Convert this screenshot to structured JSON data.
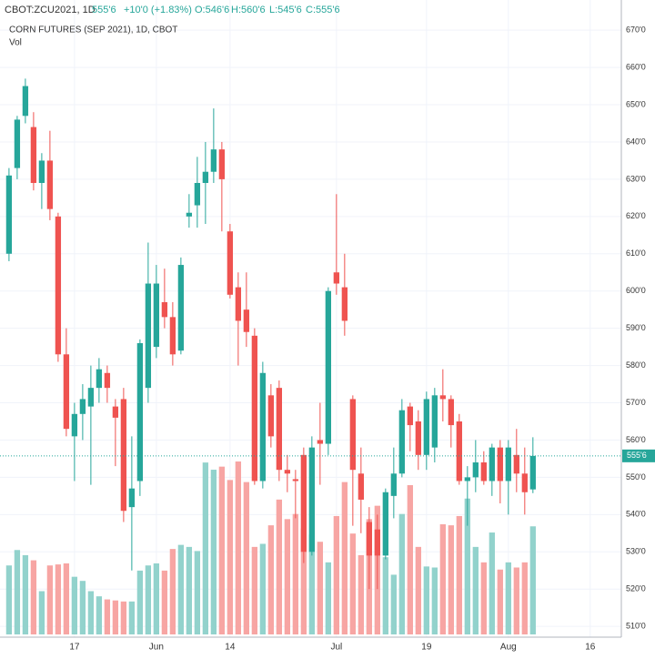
{
  "header": {
    "symbol": "CBOT:ZCU2021, 1D",
    "last": "555'6",
    "change": "+10'0 (+1.83%)",
    "open": "O:546'6",
    "high": "H:560'6",
    "low": "L:545'6",
    "close": "C:555'6"
  },
  "chart_data": {
    "type": "candlestick",
    "title": "CORN FUTURES (SEP 2021), 1D, CBOT",
    "volume_label": "Vol",
    "up_color": "#26a69a",
    "down_color": "#ef5350",
    "up_volume_color": "#92d2cc",
    "down_volume_color": "#f7a5a3",
    "open": [
      610,
      633,
      647,
      644,
      629,
      635,
      620,
      583,
      561,
      567,
      569,
      574,
      578,
      569,
      571,
      542,
      549,
      574,
      585,
      597,
      593,
      584,
      620,
      623,
      629,
      632,
      638,
      616,
      601,
      595,
      588,
      549,
      572,
      574,
      552,
      549.5,
      556,
      530,
      560,
      559,
      605,
      601,
      571,
      551,
      538,
      536,
      529,
      545,
      551,
      569,
      565,
      556,
      558,
      572,
      571,
      565,
      549,
      550,
      554,
      549,
      558,
      549,
      556,
      551,
      546.75
    ],
    "high": [
      633,
      647,
      657,
      648,
      637,
      643,
      621,
      590,
      570,
      575,
      580,
      582,
      580,
      571,
      574,
      561,
      587,
      613,
      607,
      606,
      597,
      609,
      626,
      636,
      640,
      649,
      640,
      618,
      605,
      605,
      590,
      581,
      575,
      576,
      556,
      552,
      558,
      561,
      570,
      601,
      626,
      610,
      572,
      558,
      542,
      540,
      547,
      558,
      571,
      570,
      568,
      573,
      574,
      579,
      572,
      567,
      553,
      560,
      557,
      559,
      560,
      560,
      563,
      558,
      560.75
    ],
    "low": [
      608,
      630,
      645,
      627,
      622,
      619,
      581,
      561,
      549,
      560,
      548,
      570,
      570,
      553,
      538,
      525,
      545,
      570,
      582,
      590,
      580,
      583,
      617,
      617,
      618,
      629,
      616,
      598,
      580,
      585,
      548,
      547,
      558,
      549,
      546,
      539,
      527,
      529,
      548,
      556,
      599,
      588,
      537,
      535,
      520,
      520,
      528,
      539,
      550,
      557,
      552,
      552,
      554,
      565,
      558,
      548,
      537,
      546,
      548,
      545,
      543,
      540,
      546,
      540,
      545.75
    ],
    "close": [
      631,
      646,
      655,
      629,
      635,
      622,
      583,
      563,
      567,
      571,
      574,
      579,
      574,
      566,
      541,
      547,
      586,
      602,
      602,
      593,
      583,
      607,
      621,
      629,
      632,
      638,
      630,
      599,
      592,
      589,
      549,
      578,
      561,
      552,
      551,
      549,
      530,
      558,
      559,
      600,
      602,
      592,
      552,
      544,
      529,
      529,
      546,
      551,
      568,
      564,
      556,
      571,
      572,
      571,
      564,
      549,
      550,
      554,
      549,
      558,
      549,
      558,
      551,
      546,
      555.75
    ],
    "volume": [
      67,
      82,
      77,
      72,
      42,
      67,
      68,
      69,
      56,
      52,
      42,
      37,
      34,
      33,
      32,
      32,
      62,
      67,
      69,
      62,
      83,
      87,
      85,
      81,
      167,
      160,
      163,
      150,
      168,
      148,
      85,
      88,
      106,
      131,
      112,
      117,
      103,
      97,
      90,
      70,
      115,
      148,
      98,
      77,
      112,
      125,
      75,
      58,
      117,
      145,
      85,
      66,
      65,
      107,
      106,
      115,
      132,
      85,
      70,
      99,
      63,
      70,
      65,
      70,
      105
    ],
    "last_price": {
      "value": 555.75,
      "label": "555'6"
    },
    "xlim": [
      -1.1,
      74.8
    ],
    "xticks": [
      {
        "value": 8,
        "label": "17"
      },
      {
        "value": 18,
        "label": "Jun"
      },
      {
        "value": 27,
        "label": "14"
      },
      {
        "value": 40,
        "label": "Jul"
      },
      {
        "value": 51,
        "label": "19"
      },
      {
        "value": 61,
        "label": "Aug"
      },
      {
        "value": 71,
        "label": "16"
      }
    ],
    "ylim": [
      507.1,
      678.1
    ],
    "yticks": [
      {
        "value": 510,
        "label": "510'0"
      },
      {
        "value": 520,
        "label": "520'0"
      },
      {
        "value": 530,
        "label": "530'0"
      },
      {
        "value": 540,
        "label": "540'0"
      },
      {
        "value": 550,
        "label": "550'0"
      },
      {
        "value": 560,
        "label": "560'0"
      },
      {
        "value": 570,
        "label": "570'0"
      },
      {
        "value": 580,
        "label": "580'0"
      },
      {
        "value": 590,
        "label": "590'0"
      },
      {
        "value": 600,
        "label": "600'0"
      },
      {
        "value": 610,
        "label": "610'0"
      },
      {
        "value": 620,
        "label": "620'0"
      },
      {
        "value": 630,
        "label": "630'0"
      },
      {
        "value": 640,
        "label": "640'0"
      },
      {
        "value": 650,
        "label": "650'0"
      },
      {
        "value": 660,
        "label": "660'0"
      },
      {
        "value": 670,
        "label": "670'0"
      }
    ],
    "grid": true
  }
}
